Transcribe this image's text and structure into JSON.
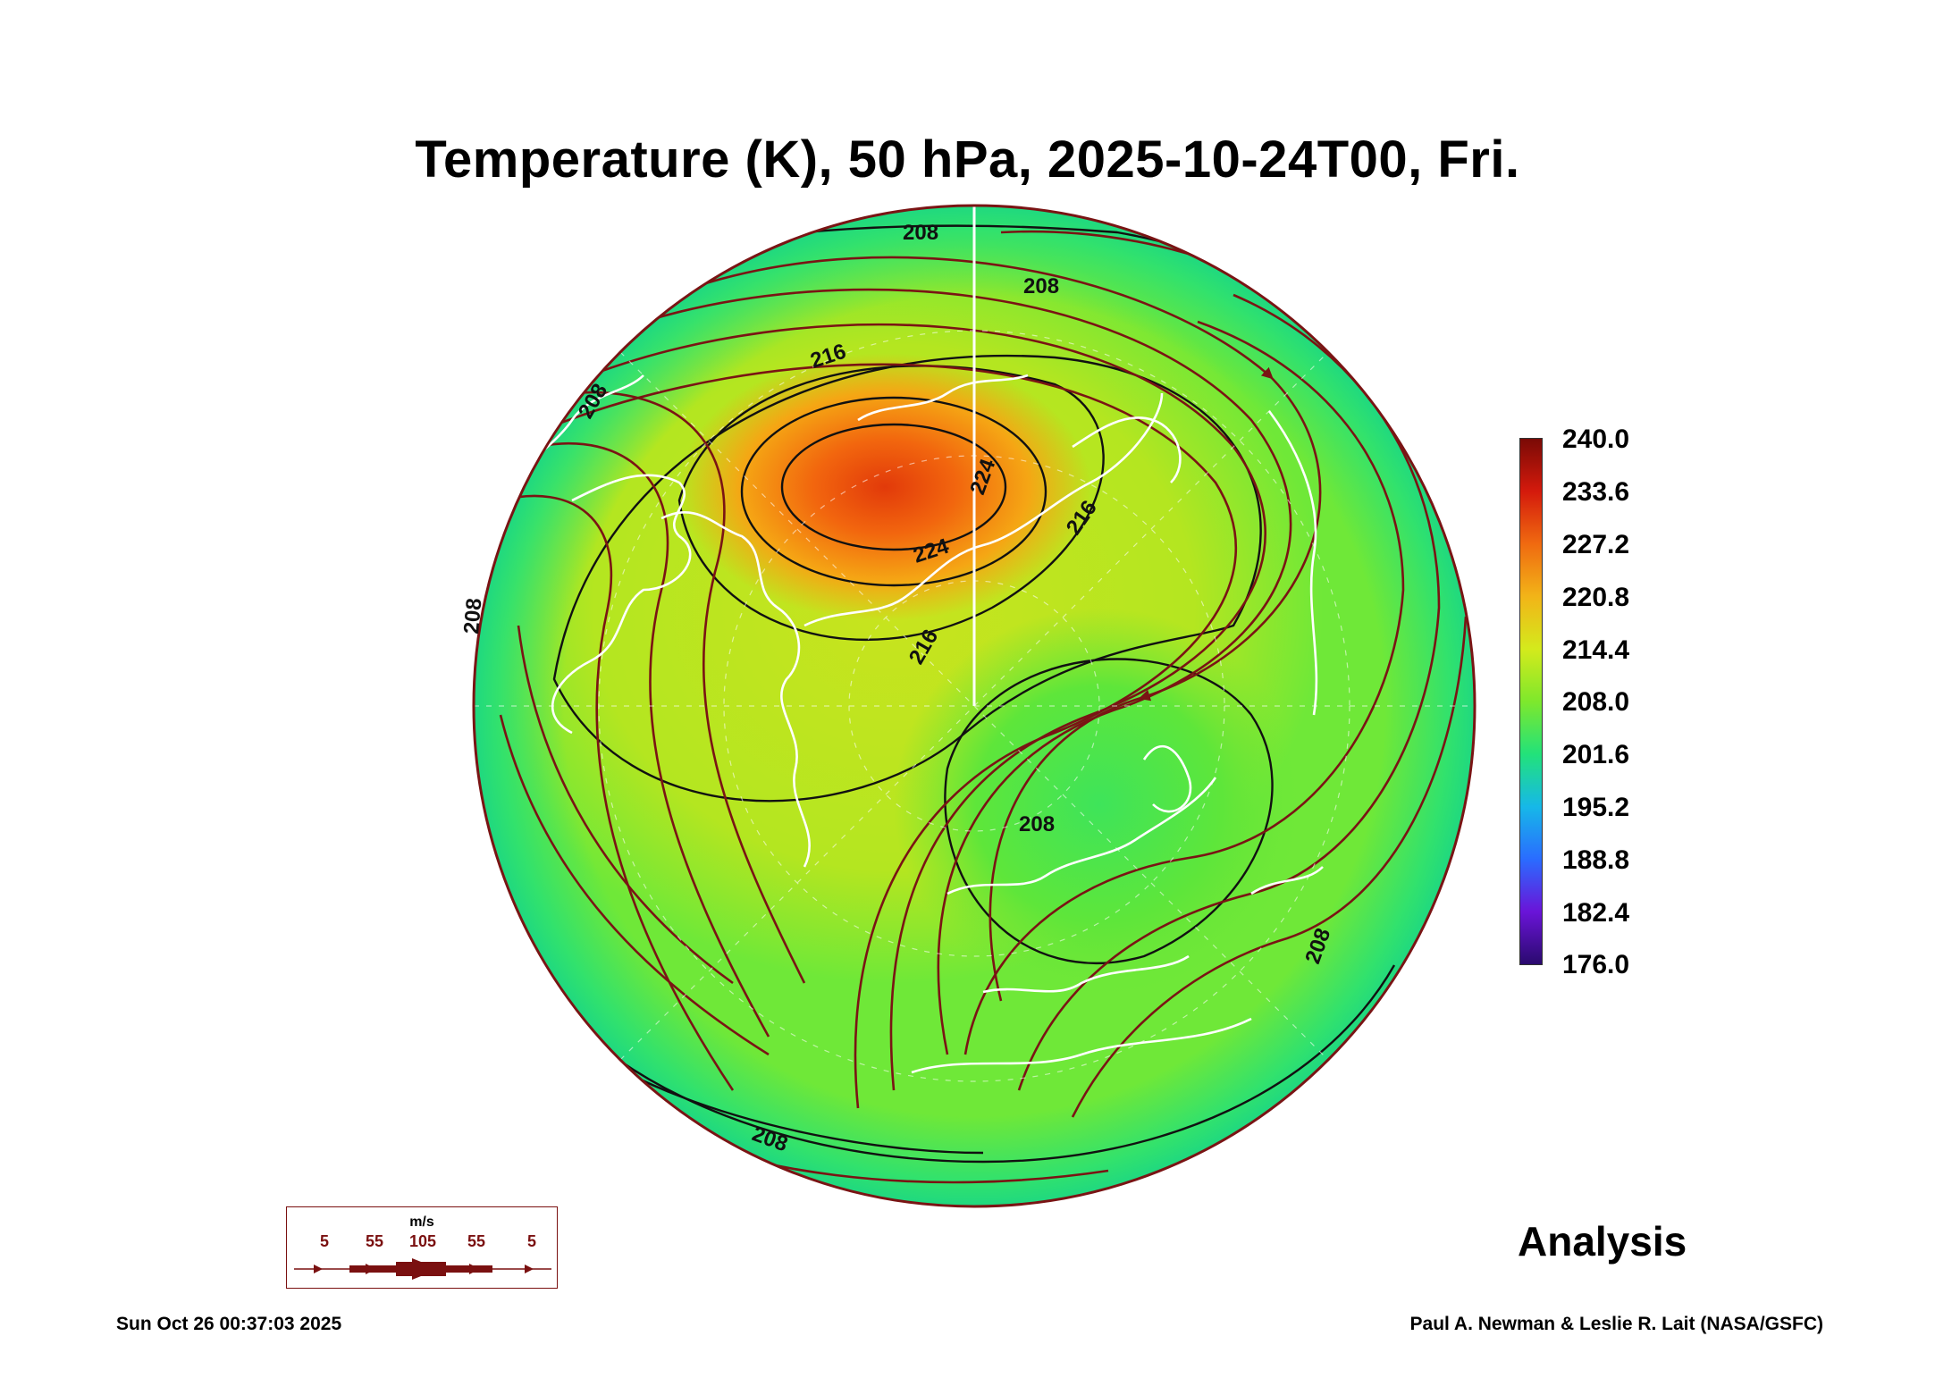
{
  "title": "Temperature (K), 50 hPa, 2025-10-24T00, Fri.",
  "colorbar": {
    "ticks": [
      "240.0",
      "233.6",
      "227.2",
      "220.8",
      "214.4",
      "208.0",
      "201.6",
      "195.2",
      "188.8",
      "182.4",
      "176.0"
    ],
    "range": [
      176.0,
      240.0
    ],
    "colors": [
      "#2a0a6e",
      "#6a14d8",
      "#2a6cff",
      "#16b8e8",
      "#22e27a",
      "#7ee82c",
      "#d4ea1c",
      "#f2b418",
      "#f06a10",
      "#d41a0c",
      "#7a0a06"
    ]
  },
  "wind_legend": {
    "unit": "m/s",
    "labels": [
      "5",
      "55",
      "105",
      "55",
      "5"
    ]
  },
  "analysis_label": "Analysis",
  "timestamp": "Sun Oct 26 00:37:03 2025",
  "credit": "Paul A. Newman & Leslie R. Lait (NASA/GSFC)",
  "contour_labels": [
    "208",
    "208",
    "216",
    "208",
    "208",
    "224",
    "224",
    "216",
    "216",
    "208",
    "208",
    "208"
  ],
  "map": {
    "projection": "north-polar orthographic",
    "field": "temperature",
    "contour_color": "#111111",
    "streamline_color": "#7a1414",
    "coastline_color": "#ffffff"
  }
}
